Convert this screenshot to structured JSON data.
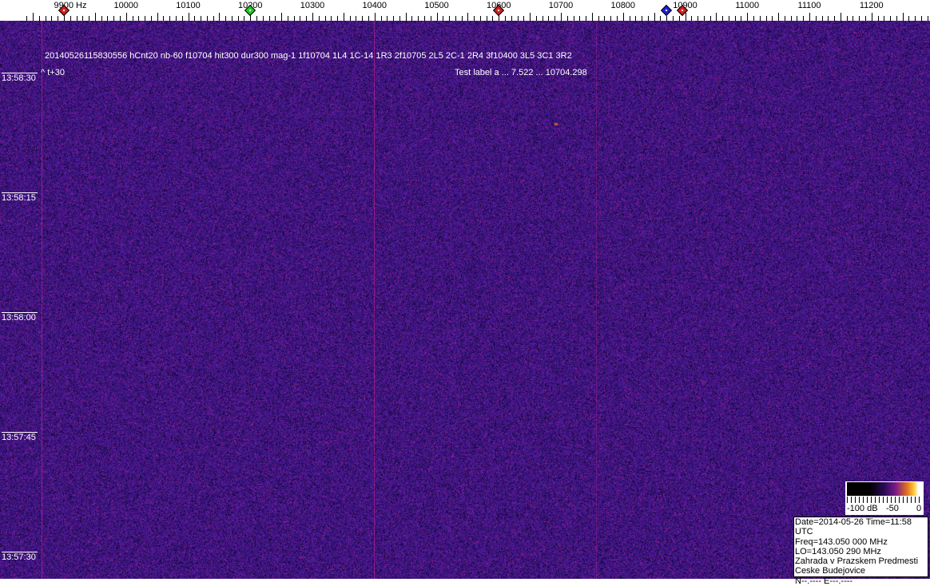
{
  "frequency_axis": {
    "unit": "Hz",
    "labels": [
      "9900 Hz",
      "10000",
      "10100",
      "10200",
      "10300",
      "10400",
      "10500",
      "10600",
      "10700",
      "10800",
      "10900",
      "11000",
      "11100",
      "11200"
    ],
    "values": [
      9900,
      10000,
      10100,
      10200,
      10300,
      10400,
      10500,
      10600,
      10700,
      10800,
      10900,
      11000,
      11100,
      11200
    ]
  },
  "markers": [
    {
      "freq": 9900,
      "color": "#cc2020"
    },
    {
      "freq": 10200,
      "color": "#20cc20"
    },
    {
      "freq": 10600,
      "color": "#cc2020"
    },
    {
      "freq": 10870,
      "color": "#2020cc"
    },
    {
      "freq": 10895,
      "color": "#cc2020"
    }
  ],
  "waterfall": {
    "header_line": "20140526115830556 hCnt20 nb-60 f10704 hit300 dur300 mag-1 1f10704 1L4 1C-14 1R3 2f10705 2L5 2C-1 2R4 3f10400 3L5 3C1 3R2",
    "time_offset": "^ t+30",
    "test_label": "Test label a  ... 7.522  ...  10704.298",
    "time_labels": [
      "13:58:30",
      "13:58:15",
      "13:58:00",
      "13:57:45",
      "13:57:30"
    ],
    "background_color": "#2a1470"
  },
  "color_bar": {
    "labels": [
      "-100 dB",
      "-50",
      "0"
    ]
  },
  "info": {
    "lines": [
      "Date=2014-05-26 Time=11:58 UTC",
      "Freq=143.050 000 MHz",
      "LO=143.050 290 MHz",
      "Zahrada v Prazskem Predmesti",
      "Ceske Budejovice",
      "N--.---- E---.----"
    ]
  }
}
